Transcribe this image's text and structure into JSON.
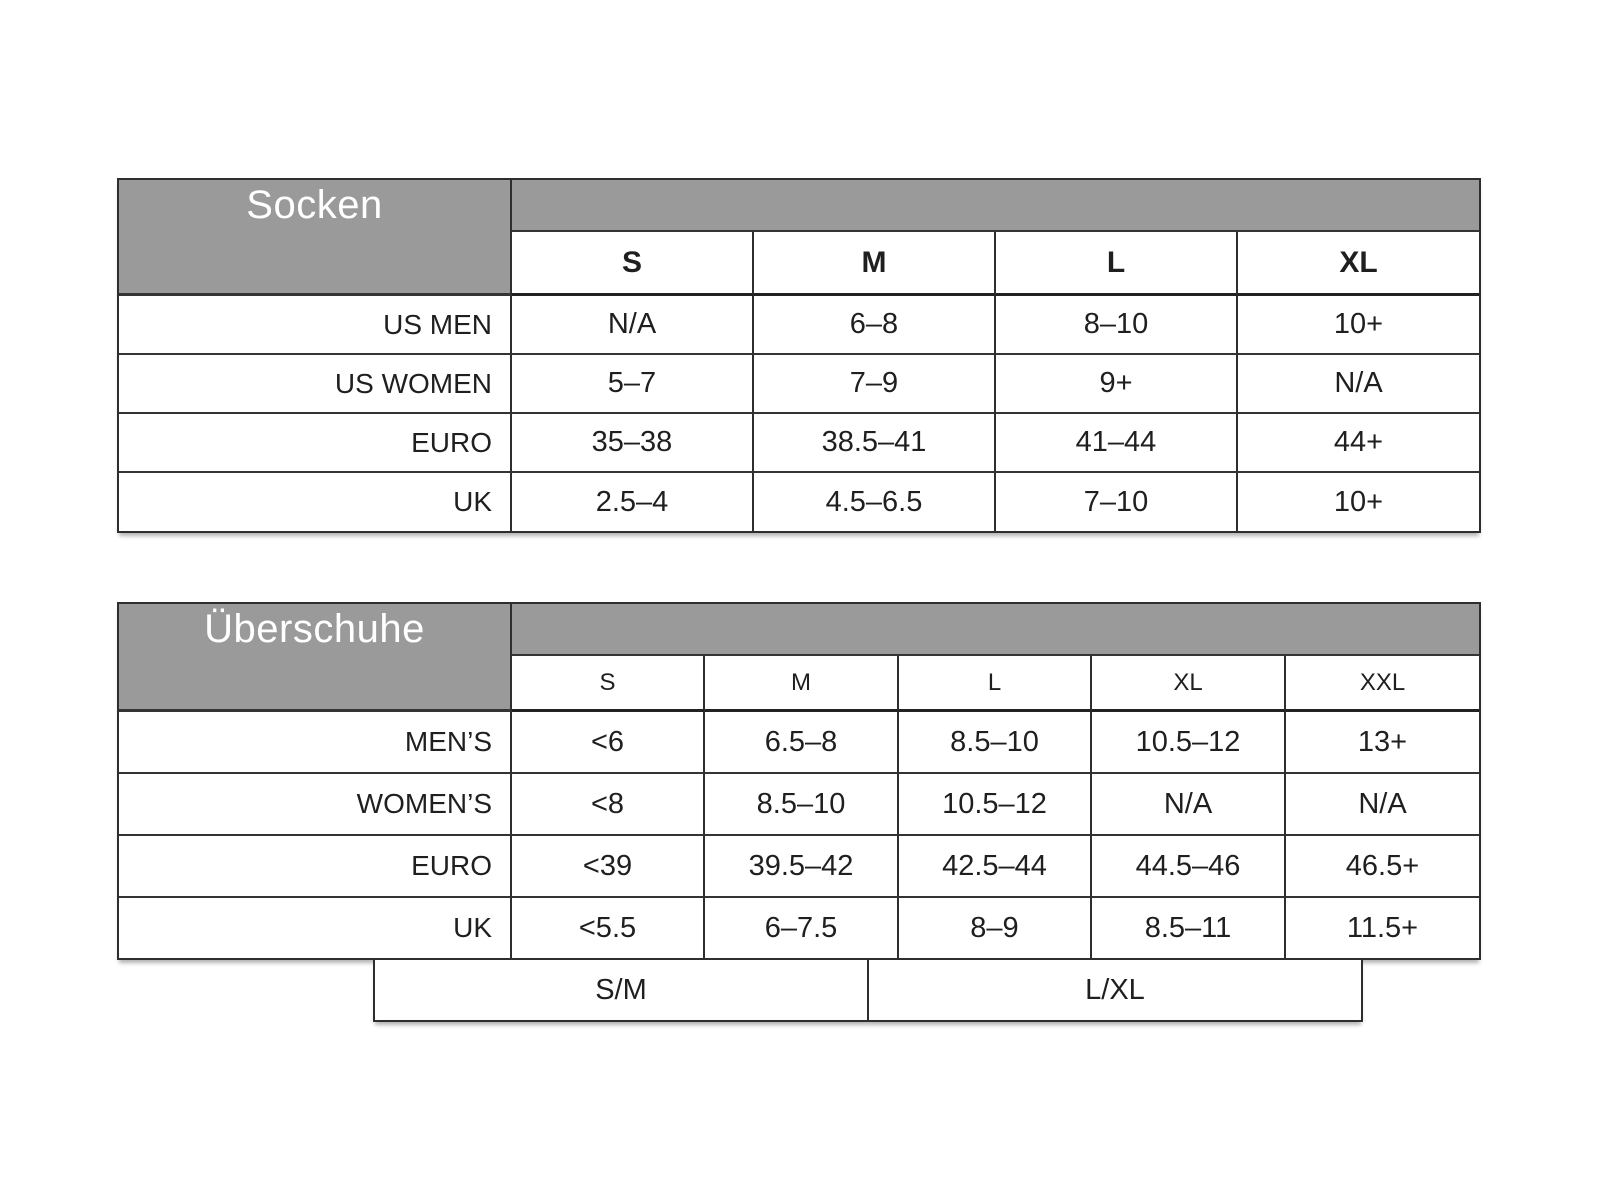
{
  "colors": {
    "header_fill": "#9a9a9a",
    "header_text": "#ffffff",
    "border": "#2e2e2e",
    "text": "#1f1f1f",
    "background": "#ffffff"
  },
  "tables": [
    {
      "title": "Socken",
      "size_headers": [
        "S",
        "M",
        "L",
        "XL"
      ],
      "rows": [
        {
          "label": "US MEN",
          "values": [
            "N/A",
            "6–8",
            "8–10",
            "10+"
          ]
        },
        {
          "label": "US WOMEN",
          "values": [
            "5–7",
            "7–9",
            "9+",
            "N/A"
          ]
        },
        {
          "label": "EURO",
          "values": [
            "35–38",
            "38.5–41",
            "41–44",
            "44+"
          ]
        },
        {
          "label": "UK",
          "values": [
            "2.5–4",
            "4.5–6.5",
            "7–10",
            "10+"
          ]
        }
      ]
    },
    {
      "title": "Überschuhe",
      "size_headers": [
        "S",
        "M",
        "L",
        "XL",
        "XXL"
      ],
      "rows": [
        {
          "label": "MEN’S",
          "values": [
            "<6",
            "6.5–8",
            "8.5–10",
            "10.5–12",
            "13+"
          ]
        },
        {
          "label": "WOMEN’S",
          "values": [
            "<8",
            "8.5–10",
            "10.5–12",
            "N/A",
            "N/A"
          ]
        },
        {
          "label": "EURO",
          "values": [
            "<39",
            "39.5–42",
            "42.5–44",
            "44.5–46",
            "46.5+"
          ]
        },
        {
          "label": "UK",
          "values": [
            "<5.5",
            "6–7.5",
            "8–9",
            "8.5–11",
            "11.5+"
          ]
        }
      ],
      "group_brackets": [
        {
          "label": "S/M"
        },
        {
          "label": "L/XL"
        }
      ]
    }
  ]
}
